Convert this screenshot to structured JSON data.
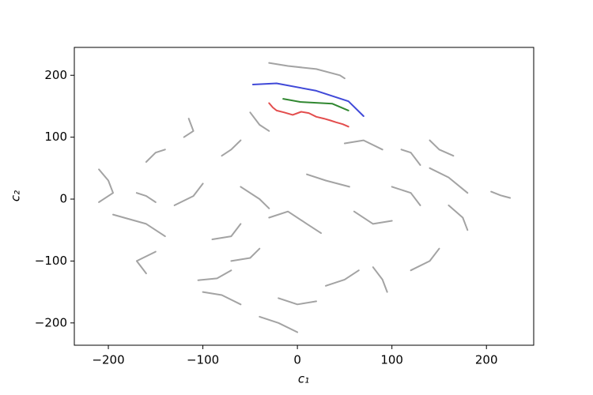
{
  "chart_data": {
    "type": "line",
    "xlabel": "c₁",
    "ylabel": "c₂",
    "xlim": [
      -236,
      250
    ],
    "ylim": [
      -236,
      245
    ],
    "xticks": [
      {
        "value": -200,
        "label": "−200"
      },
      {
        "value": -100,
        "label": "−100"
      },
      0,
      100,
      200
    ],
    "yticks": [
      {
        "value": -200,
        "label": "−200"
      },
      {
        "value": -100,
        "label": "−100"
      },
      0,
      100,
      200
    ],
    "series": [
      {
        "color": "#2b35d4",
        "x": [
          -47,
          -22,
          20,
          54,
          70
        ],
        "values": [
          185,
          187,
          175,
          158,
          134
        ]
      },
      {
        "color": "#1a7a1a",
        "x": [
          -15,
          3,
          37,
          54
        ],
        "values": [
          162,
          157,
          154,
          143
        ]
      },
      {
        "color": "#e03a3a",
        "x": [
          -30,
          -26,
          -22,
          -14,
          -5,
          4,
          12,
          20,
          28,
          35,
          41,
          48,
          54
        ],
        "values": [
          155,
          148,
          143,
          140,
          136,
          141,
          139,
          133,
          130,
          127,
          124,
          121,
          117
        ]
      },
      {
        "color": "#999999",
        "x": [
          -30,
          -10,
          20,
          45,
          50
        ],
        "values": [
          220,
          215,
          210,
          200,
          195
        ]
      },
      {
        "color": "#999999",
        "x": [
          -210,
          -200,
          -195,
          -210
        ],
        "values": [
          48,
          30,
          10,
          -5
        ]
      },
      {
        "color": "#999999",
        "x": [
          -195,
          -160,
          -140
        ],
        "values": [
          -25,
          -40,
          -60
        ]
      },
      {
        "color": "#999999",
        "x": [
          -150,
          -170,
          -160
        ],
        "values": [
          -85,
          -100,
          -120
        ]
      },
      {
        "color": "#999999",
        "x": [
          -105,
          -85,
          -70
        ],
        "values": [
          -131,
          -128,
          -115
        ]
      },
      {
        "color": "#999999",
        "x": [
          -90,
          -70,
          -60
        ],
        "values": [
          -65,
          -60,
          -40
        ]
      },
      {
        "color": "#999999",
        "x": [
          -130,
          -110,
          -100
        ],
        "values": [
          -10,
          5,
          25
        ]
      },
      {
        "color": "#999999",
        "x": [
          -160,
          -150,
          -140
        ],
        "values": [
          60,
          75,
          80
        ]
      },
      {
        "color": "#999999",
        "x": [
          -120,
          -110,
          -115
        ],
        "values": [
          100,
          110,
          130
        ]
      },
      {
        "color": "#999999",
        "x": [
          -80,
          -70,
          -60
        ],
        "values": [
          70,
          80,
          95
        ]
      },
      {
        "color": "#999999",
        "x": [
          -50,
          -40,
          -30
        ],
        "values": [
          140,
          120,
          110
        ]
      },
      {
        "color": "#999999",
        "x": [
          50,
          70,
          90
        ],
        "values": [
          90,
          95,
          80
        ]
      },
      {
        "color": "#999999",
        "x": [
          110,
          120,
          130
        ],
        "values": [
          80,
          75,
          55
        ]
      },
      {
        "color": "#999999",
        "x": [
          140,
          160,
          180
        ],
        "values": [
          50,
          35,
          10
        ]
      },
      {
        "color": "#999999",
        "x": [
          160,
          175,
          180
        ],
        "values": [
          -10,
          -30,
          -50
        ]
      },
      {
        "color": "#999999",
        "x": [
          150,
          140,
          120
        ],
        "values": [
          -80,
          -100,
          -115
        ]
      },
      {
        "color": "#999999",
        "x": [
          80,
          90,
          95
        ],
        "values": [
          -110,
          -130,
          -150
        ]
      },
      {
        "color": "#999999",
        "x": [
          30,
          50,
          65
        ],
        "values": [
          -140,
          -130,
          -115
        ]
      },
      {
        "color": "#999999",
        "x": [
          -20,
          0,
          20
        ],
        "values": [
          -160,
          -170,
          -165
        ]
      },
      {
        "color": "#999999",
        "x": [
          -40,
          -20,
          0
        ],
        "values": [
          -190,
          -200,
          -215
        ]
      },
      {
        "color": "#999999",
        "x": [
          -100,
          -80,
          -60
        ],
        "values": [
          -150,
          -155,
          -170
        ]
      },
      {
        "color": "#999999",
        "x": [
          -30,
          -10,
          10,
          25
        ],
        "values": [
          -30,
          -20,
          -40,
          -55
        ]
      },
      {
        "color": "#999999",
        "x": [
          10,
          30,
          55
        ],
        "values": [
          40,
          30,
          20
        ]
      },
      {
        "color": "#999999",
        "x": [
          60,
          80,
          100
        ],
        "values": [
          -20,
          -40,
          -35
        ]
      },
      {
        "color": "#999999",
        "x": [
          100,
          120,
          130
        ],
        "values": [
          20,
          10,
          -10
        ]
      },
      {
        "color": "#999999",
        "x": [
          -60,
          -40,
          -30
        ],
        "values": [
          20,
          0,
          -15
        ]
      },
      {
        "color": "#999999",
        "x": [
          -170,
          -160,
          -150
        ],
        "values": [
          10,
          5,
          -5
        ]
      },
      {
        "color": "#999999",
        "x": [
          205,
          215,
          225
        ],
        "values": [
          12,
          6,
          2
        ]
      },
      {
        "color": "#999999",
        "x": [
          140,
          150,
          165
        ],
        "values": [
          95,
          80,
          70
        ]
      },
      {
        "color": "#999999",
        "x": [
          -70,
          -50,
          -40
        ],
        "values": [
          -100,
          -95,
          -80
        ]
      }
    ]
  }
}
